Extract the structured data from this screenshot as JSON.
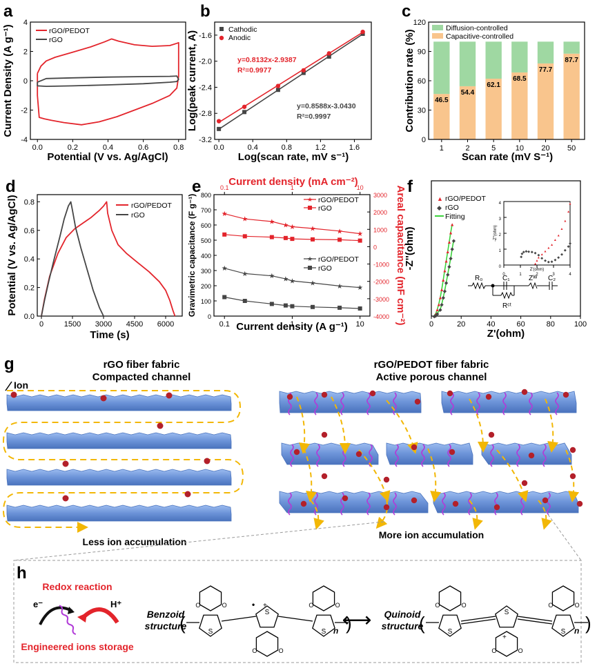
{
  "panel_letters": [
    "a",
    "b",
    "c",
    "d",
    "e",
    "f",
    "g",
    "h"
  ],
  "colors": {
    "red": "#e3242b",
    "gray": "#454545",
    "green": "#9fd8a2",
    "orange": "#f9c58d",
    "fiber": "#6f96d9",
    "ion": "#b3202a",
    "purple": "#b13bd8",
    "yellow": "#f2b705"
  },
  "chart_data": [
    {
      "id": "a",
      "type": "line",
      "xlabel": "Potential (V vs. Ag/AgCl)",
      "ylabel": "Current Density (A g⁻¹)",
      "xlim": [
        -0.04,
        0.84
      ],
      "ylim": [
        -4,
        4
      ],
      "xticks": [
        "0.0",
        "0.2",
        "0.4",
        "0.6",
        "0.8"
      ],
      "yticks": [
        "-4",
        "-2",
        "0",
        "2",
        "4"
      ],
      "legend": [
        "rGO/PEDOT",
        "rGO"
      ],
      "series": [
        {
          "name": "rGO/PEDOT",
          "color": "#e3242b",
          "x": [
            0.0,
            0.02,
            0.05,
            0.1,
            0.2,
            0.3,
            0.38,
            0.42,
            0.46,
            0.55,
            0.65,
            0.75,
            0.79,
            0.8,
            0.8,
            0.79,
            0.75,
            0.65,
            0.55,
            0.45,
            0.35,
            0.25,
            0.15,
            0.08,
            0.04,
            0.01,
            0.0,
            0.0
          ],
          "y": [
            0.5,
            1.0,
            1.35,
            1.6,
            1.95,
            2.3,
            2.65,
            2.85,
            2.7,
            2.45,
            2.35,
            2.4,
            2.55,
            2.6,
            0.3,
            -0.5,
            -1.0,
            -1.55,
            -2.0,
            -2.45,
            -2.8,
            -3.0,
            -2.85,
            -2.7,
            -2.6,
            -2.5,
            -1.0,
            0.5
          ]
        },
        {
          "name": "rGO",
          "color": "#454545",
          "x": [
            0.0,
            0.05,
            0.2,
            0.4,
            0.6,
            0.75,
            0.79,
            0.8,
            0.79,
            0.75,
            0.6,
            0.4,
            0.2,
            0.05,
            0.0,
            0.0
          ],
          "y": [
            -0.1,
            0.15,
            0.2,
            0.25,
            0.28,
            0.3,
            0.32,
            0.1,
            -0.05,
            -0.1,
            -0.2,
            -0.28,
            -0.35,
            -0.38,
            -0.35,
            -0.1
          ]
        }
      ]
    },
    {
      "id": "b",
      "type": "scatter",
      "xlabel": "Log(scan rate, mV s⁻¹)",
      "ylabel": "Log(peak current, A)",
      "xlim": [
        -0.05,
        1.8
      ],
      "ylim": [
        -3.2,
        -1.4
      ],
      "xticks": [
        "0.0",
        "0.4",
        "0.8",
        "1.2",
        "1.6"
      ],
      "yticks": [
        "-3.2",
        "-2.8",
        "-2.4",
        "-2.0",
        "-1.6"
      ],
      "legend": [
        "Cathodic",
        "Anodic"
      ],
      "series": [
        {
          "name": "Cathodic",
          "color": "#454545",
          "x": [
            0,
            0.301,
            0.699,
            1.0,
            1.301,
            1.699
          ],
          "y": [
            -3.04,
            -2.78,
            -2.44,
            -2.18,
            -1.93,
            -1.58
          ],
          "fit": [
            -3.043,
            0.8588
          ]
        },
        {
          "name": "Anodic",
          "color": "#e3242b",
          "x": [
            0,
            0.301,
            0.699,
            1.0,
            1.301,
            1.699
          ],
          "y": [
            -2.92,
            -2.7,
            -2.38,
            -2.14,
            -1.88,
            -1.55
          ],
          "fit": [
            -2.9387,
            0.8132
          ]
        }
      ],
      "annotations": [
        "y=0.8132x-2.9387",
        "R²=0.9977",
        "y=0.8588x-3.0430",
        "R²=0.9997"
      ]
    },
    {
      "id": "c",
      "type": "bar",
      "xlabel": "Scan rate (mV S⁻¹)",
      "ylabel": "Contribution rate (%)",
      "ylim": [
        0,
        120
      ],
      "yticks": [
        "0",
        "30",
        "60",
        "90",
        "120"
      ],
      "categories": [
        "1",
        "2",
        "5",
        "10",
        "20",
        "50"
      ],
      "legend": [
        "Diffusion-controlled",
        "Capacitive-controlled"
      ],
      "series": [
        {
          "name": "Capacitive-controlled",
          "color": "#f9c58d",
          "values": [
            46.5,
            54.4,
            62.1,
            68.5,
            77.7,
            87.7
          ]
        },
        {
          "name": "Diffusion-controlled",
          "color": "#9fd8a2",
          "values": [
            53.5,
            45.6,
            37.9,
            31.5,
            22.3,
            12.3
          ]
        }
      ],
      "data_labels": [
        "46.5",
        "54.4",
        "62.1",
        "68.5",
        "77.7",
        "87.7"
      ]
    },
    {
      "id": "d",
      "type": "line",
      "xlabel": "Time (s)",
      "ylabel": "Potential (V vs. Ag/AgCl)",
      "xlim": [
        -200,
        6800
      ],
      "ylim": [
        0,
        0.85
      ],
      "xticks": [
        "0",
        "1500",
        "3000",
        "4500",
        "6000"
      ],
      "yticks": [
        "0.0",
        "0.2",
        "0.4",
        "0.6",
        "0.8"
      ],
      "legend": [
        "rGO/PEDOT",
        "rGO"
      ],
      "series": [
        {
          "name": "rGO/PEDOT",
          "color": "#e3242b",
          "x": [
            0,
            150,
            400,
            800,
            1200,
            1600,
            2000,
            2400,
            2800,
            3000,
            3150,
            3200,
            3400,
            3700,
            4100,
            4600,
            5200,
            5700,
            6000,
            6200,
            6350,
            6450
          ],
          "y": [
            0,
            0.12,
            0.28,
            0.44,
            0.55,
            0.61,
            0.65,
            0.69,
            0.74,
            0.77,
            0.8,
            0.72,
            0.6,
            0.5,
            0.44,
            0.38,
            0.31,
            0.24,
            0.18,
            0.11,
            0.04,
            0
          ]
        },
        {
          "name": "rGO",
          "color": "#454545",
          "x": [
            0,
            150,
            350,
            600,
            900,
            1100,
            1300,
            1420,
            1500,
            1650,
            1900,
            2200,
            2500,
            2800,
            3000
          ],
          "y": [
            0,
            0.11,
            0.24,
            0.39,
            0.56,
            0.68,
            0.77,
            0.8,
            0.74,
            0.62,
            0.48,
            0.33,
            0.18,
            0.06,
            0
          ]
        }
      ]
    },
    {
      "id": "e",
      "type": "line",
      "xlabel": "Current density (A g⁻¹)",
      "ylabel": "Gravimetric capacitance (F g⁻¹)",
      "top_xlabel": "Current density (mA cm⁻²)",
      "right_ylabel": "Areal capacitance (mF cm⁻²)",
      "xscale": "log",
      "xlim": [
        0.07,
        14
      ],
      "ylim": [
        0,
        800
      ],
      "right_ylim": [
        -4000,
        3000
      ],
      "xticks": [
        "0.1",
        "1",
        "10"
      ],
      "top_xticks": [
        "0.1",
        "1",
        "10"
      ],
      "yticks": [
        "0",
        "100",
        "200",
        "300",
        "400",
        "500",
        "600",
        "700",
        "800"
      ],
      "right_yticks": [
        "-4000",
        "-3000",
        "-2000",
        "-1000",
        "0",
        "1000",
        "2000",
        "3000"
      ],
      "x": [
        0.1,
        0.2,
        0.5,
        0.8,
        1,
        2,
        5,
        10
      ],
      "legend": [
        "rGO/PEDOT",
        "rGO",
        "rGO/PEDOT",
        "rGO"
      ],
      "series": [
        {
          "name": "rGO/PEDOT",
          "axis": "right",
          "color": "#e3242b",
          "marker": "star",
          "values": [
            1900,
            1600,
            1450,
            1250,
            1150,
            1050,
            900,
            750
          ]
        },
        {
          "name": "rGO",
          "axis": "right",
          "color": "#e3242b",
          "marker": "square",
          "values": [
            700,
            600,
            550,
            500,
            450,
            420,
            400,
            350
          ]
        },
        {
          "name": "rGO/PEDOT",
          "axis": "left",
          "color": "#454545",
          "marker": "star",
          "values": [
            315,
            280,
            265,
            245,
            232,
            218,
            198,
            188
          ]
        },
        {
          "name": "rGO",
          "axis": "left",
          "color": "#454545",
          "marker": "square",
          "values": [
            125,
            100,
            80,
            70,
            65,
            60,
            55,
            50
          ]
        }
      ]
    },
    {
      "id": "f",
      "type": "scatter",
      "xlabel": "Z'(ohm)",
      "ylabel": "-Z''(ohm)",
      "xlim": [
        0,
        100
      ],
      "ylim": [
        0,
        100
      ],
      "xticks": [
        "0",
        "20",
        "40",
        "60",
        "80",
        "100"
      ],
      "legend": [
        "rGO/PEDOT",
        "rGO",
        "Fitting"
      ],
      "series": [
        {
          "name": "rGO/PEDOT",
          "color": "#e3242b",
          "x": [
            2,
            3,
            4,
            5,
            6,
            7,
            8,
            9,
            10,
            11,
            12,
            13,
            14
          ],
          "y": [
            0.5,
            2,
            5,
            9,
            14,
            20,
            27,
            34,
            41,
            48,
            55,
            62,
            68
          ]
        },
        {
          "name": "rGO",
          "color": "#454545",
          "x": [
            2,
            3,
            4,
            6,
            7,
            8,
            9,
            10,
            11,
            12,
            13,
            14,
            15
          ],
          "y": [
            0.3,
            0.8,
            2,
            5,
            9,
            14,
            19,
            25,
            31,
            37,
            43,
            50,
            56
          ]
        }
      ],
      "inset": {
        "xlabel": "Z'(ohm)",
        "ylabel": "-Z''(ohm)",
        "xlim": [
          0,
          4
        ],
        "ylim": [
          0,
          4
        ],
        "xticks": [
          "0",
          "1",
          "2",
          "3",
          "4"
        ],
        "yticks": [
          "0",
          "1",
          "2",
          "3",
          "4"
        ],
        "series": [
          {
            "name": "rGO/PEDOT",
            "color": "#e3242b",
            "x": [
              1.9,
              2.0,
              2.1,
              2.3,
              2.5,
              2.7,
              2.9,
              3.1,
              3.3,
              3.5,
              3.7,
              3.9,
              4.0
            ],
            "y": [
              0.1,
              0.3,
              0.5,
              0.7,
              0.9,
              1.1,
              1.3,
              1.6,
              1.9,
              2.3,
              2.8,
              3.4,
              3.9
            ]
          },
          {
            "name": "rGO",
            "color": "#454545",
            "x": [
              1.05,
              1.1,
              1.2,
              1.35,
              1.5,
              1.7,
              1.9,
              2.1,
              2.3,
              2.5,
              2.7,
              2.9,
              3.1,
              3.3,
              3.5,
              3.7,
              3.9,
              4.0
            ],
            "y": [
              0.55,
              0.75,
              0.85,
              0.9,
              0.88,
              0.85,
              0.78,
              0.65,
              0.45,
              0.3,
              0.22,
              0.25,
              0.35,
              0.5,
              0.7,
              0.95,
              1.2,
              1.4
            ]
          }
        ]
      },
      "circuit_labels": [
        "R₀",
        "C₁",
        "Zᵂ",
        "C₂",
        "Rᶜᵗ"
      ]
    }
  ],
  "g": {
    "left_title": [
      "rGO fiber fabric",
      "Compacted channel"
    ],
    "right_title": [
      "rGO/PEDOT fiber fabric",
      "Active porous channel"
    ],
    "ion_label": "Ion",
    "left_caption": "Less ion accumulation",
    "right_caption": "More ion accumulation"
  },
  "h": {
    "redox": "Redox reaction",
    "storage": "Engineered ions storage",
    "e_label": "e⁻",
    "h_label": "H⁺",
    "benzoid": [
      "Benzoid",
      "structure"
    ],
    "quinoid": [
      "Quinoid",
      "structure"
    ],
    "n": "n",
    "arrow": "⟷"
  }
}
